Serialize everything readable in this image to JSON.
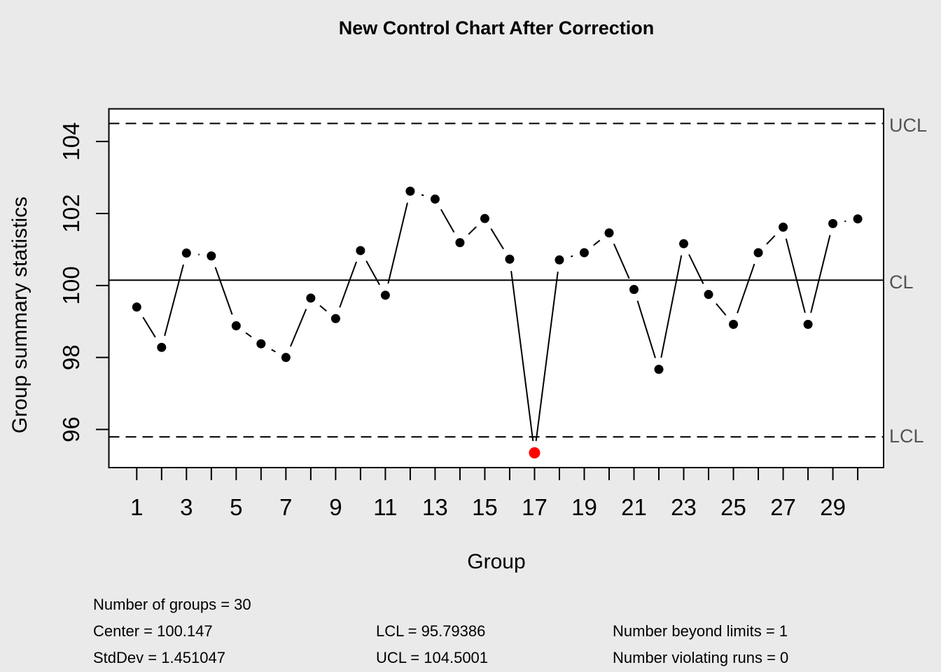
{
  "figure": {
    "background": "#EAEAEA",
    "plot_background": "#FFFFFF"
  },
  "chart_data": {
    "type": "line",
    "title": "New Control Chart After Correction",
    "xlabel": "Group",
    "ylabel": "Group summary statistics",
    "x": [
      1,
      2,
      3,
      4,
      5,
      6,
      7,
      8,
      9,
      10,
      11,
      12,
      13,
      14,
      15,
      16,
      17,
      18,
      19,
      20,
      21,
      22,
      23,
      24,
      25,
      26,
      27,
      28,
      29,
      30
    ],
    "values": [
      99.4,
      98.28,
      100.9,
      100.82,
      98.88,
      98.38,
      98.0,
      99.65,
      99.08,
      100.97,
      99.73,
      102.62,
      102.4,
      101.19,
      101.86,
      100.73,
      95.35,
      100.71,
      100.91,
      101.46,
      99.89,
      97.67,
      101.16,
      99.75,
      98.92,
      100.91,
      101.62,
      98.92,
      101.72,
      101.85
    ],
    "n_groups": 30,
    "center": 100.147,
    "std_dev": 1.451047,
    "lcl": 95.79386,
    "ucl": 104.5001,
    "ylim": [
      95.2,
      104.7
    ],
    "yticks": [
      96,
      98,
      100,
      102,
      104
    ],
    "xticks_labeled": [
      1,
      3,
      5,
      7,
      9,
      11,
      13,
      15,
      17,
      19,
      21,
      23,
      25,
      27,
      29
    ],
    "beyond_limits_points": [
      17
    ],
    "number_beyond_limits": 1,
    "number_violating_runs": 0,
    "grid": false,
    "legend_position": "none",
    "limit_labels": {
      "ucl": "UCL",
      "cl": "CL",
      "lcl": "LCL"
    },
    "colors": {
      "point": "#000000",
      "line": "#000000",
      "violation": "#FF0000",
      "limit_label": "#545454"
    }
  },
  "stats": {
    "number_of_groups": "Number of groups = 30",
    "center": "Center = 100.147",
    "std_dev": "StdDev = 1.451047",
    "lcl": "LCL = 95.79386",
    "ucl": "UCL = 104.5001",
    "beyond_limits": "Number beyond limits = 1",
    "violating_runs": "Number violating runs = 0"
  }
}
